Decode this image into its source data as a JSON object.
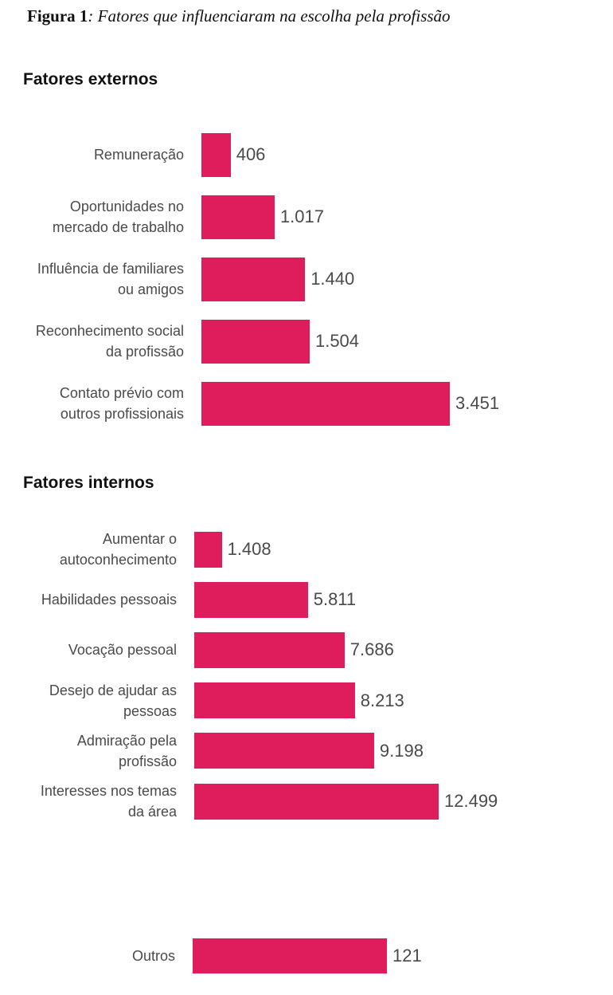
{
  "caption": {
    "label": "Figura 1",
    "text": ": Fatores que influenciaram na escolha pela profissão"
  },
  "chart_data": [
    {
      "type": "barh",
      "title": "Fatores externos",
      "color": "#e01d5c",
      "categories": [
        "Remuneração",
        "Oportunidades no mercado de trabalho",
        "Influência de familiares ou amigos",
        "Reconhecimento social da profissão",
        "Contato prévio com outros profissionais"
      ],
      "values": [
        406,
        1017,
        1440,
        1504,
        3451
      ],
      "value_labels": [
        "406",
        "1.017",
        "1.440",
        "1.504",
        "3.451"
      ]
    },
    {
      "type": "barh",
      "title": "Fatores internos",
      "color": "#e01d5c",
      "categories": [
        "Aumentar o autoconhecimento",
        "Habilidades pessoais",
        "Vocação pessoal",
        "Desejo de ajudar as pessoas",
        "Admiração pela profissão",
        "Interesses nos temas da área"
      ],
      "values": [
        1408,
        5811,
        7686,
        8213,
        9198,
        12499
      ],
      "value_labels": [
        "1.408",
        "5.811",
        "7.686",
        "8.213",
        "9.198",
        "12.499"
      ]
    },
    {
      "type": "barh",
      "color": "#e01d5c",
      "categories": [
        "Outros"
      ],
      "values": [
        121
      ],
      "value_labels": [
        "121"
      ]
    }
  ]
}
